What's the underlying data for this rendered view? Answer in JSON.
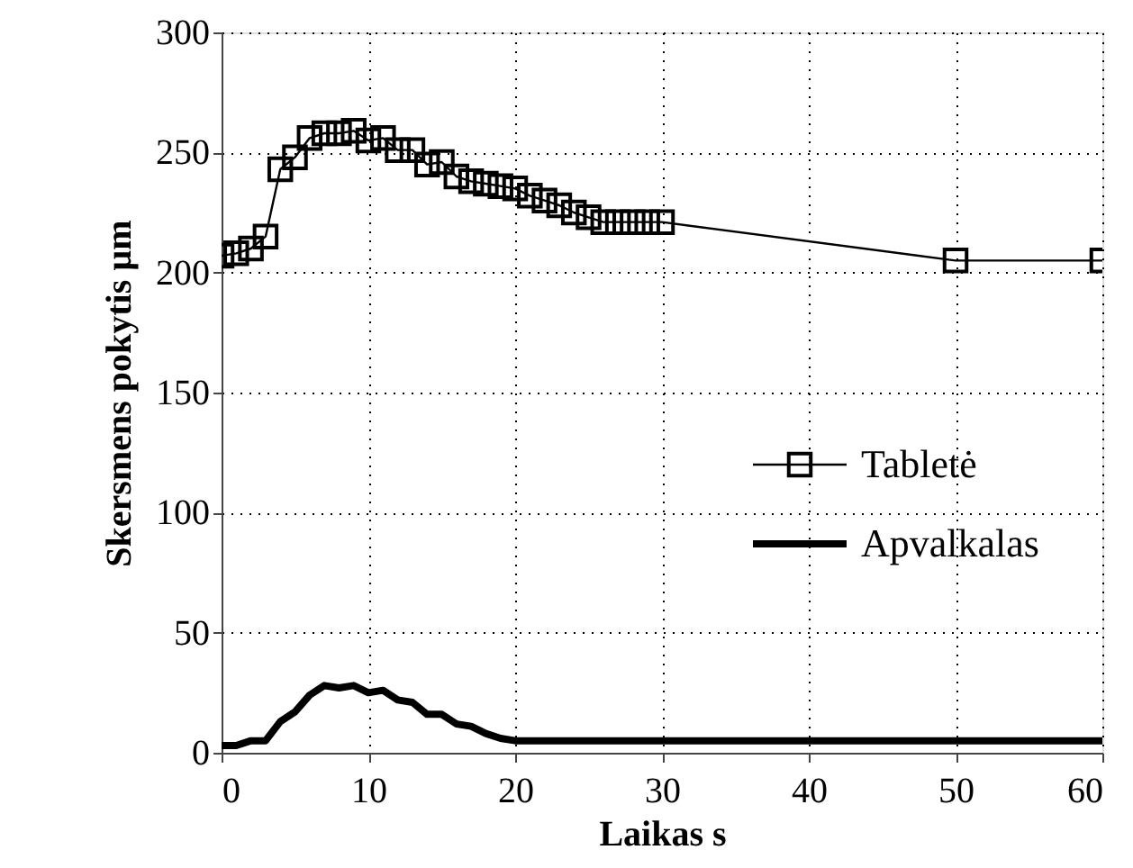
{
  "chart_data": {
    "type": "line",
    "xlabel": "Laikas s",
    "ylabel": "Skersmens pokytis µm",
    "xlim": [
      0,
      60
    ],
    "xticks": [
      0,
      10,
      20,
      30,
      40,
      50,
      60
    ],
    "ylim": [
      0,
      300
    ],
    "yticks": [
      0,
      50,
      100,
      150,
      200,
      250,
      300
    ],
    "grid": true,
    "legend": "right",
    "series": [
      {
        "name": "Tabletė",
        "color": "#000000",
        "marker": "square",
        "x": [
          0,
          1,
          2,
          3,
          4,
          5,
          6,
          7,
          8,
          9,
          10,
          11,
          12,
          13,
          14,
          15,
          16,
          17,
          18,
          19,
          20,
          21,
          22,
          23,
          24,
          25,
          26,
          27,
          28,
          29,
          30,
          50,
          60
        ],
        "values": [
          207,
          208,
          210,
          215,
          243,
          248,
          256,
          258,
          258,
          259,
          255,
          256,
          251,
          251,
          245,
          246,
          240,
          238,
          237,
          236,
          235,
          232,
          230,
          228,
          225,
          223,
          221,
          221,
          221,
          221,
          221,
          205,
          205
        ]
      },
      {
        "name": "Apvalkalas",
        "color": "#000000",
        "marker": "none",
        "x": [
          0,
          1,
          2,
          3,
          4,
          5,
          6,
          7,
          8,
          9,
          10,
          11,
          12,
          13,
          14,
          15,
          16,
          17,
          18,
          19,
          20,
          30,
          40,
          50,
          60
        ],
        "values": [
          3,
          3,
          5,
          5,
          13,
          17,
          24,
          28,
          27,
          28,
          25,
          26,
          22,
          21,
          16,
          16,
          12,
          11,
          8,
          6,
          5,
          5,
          5,
          5,
          5
        ]
      }
    ]
  }
}
